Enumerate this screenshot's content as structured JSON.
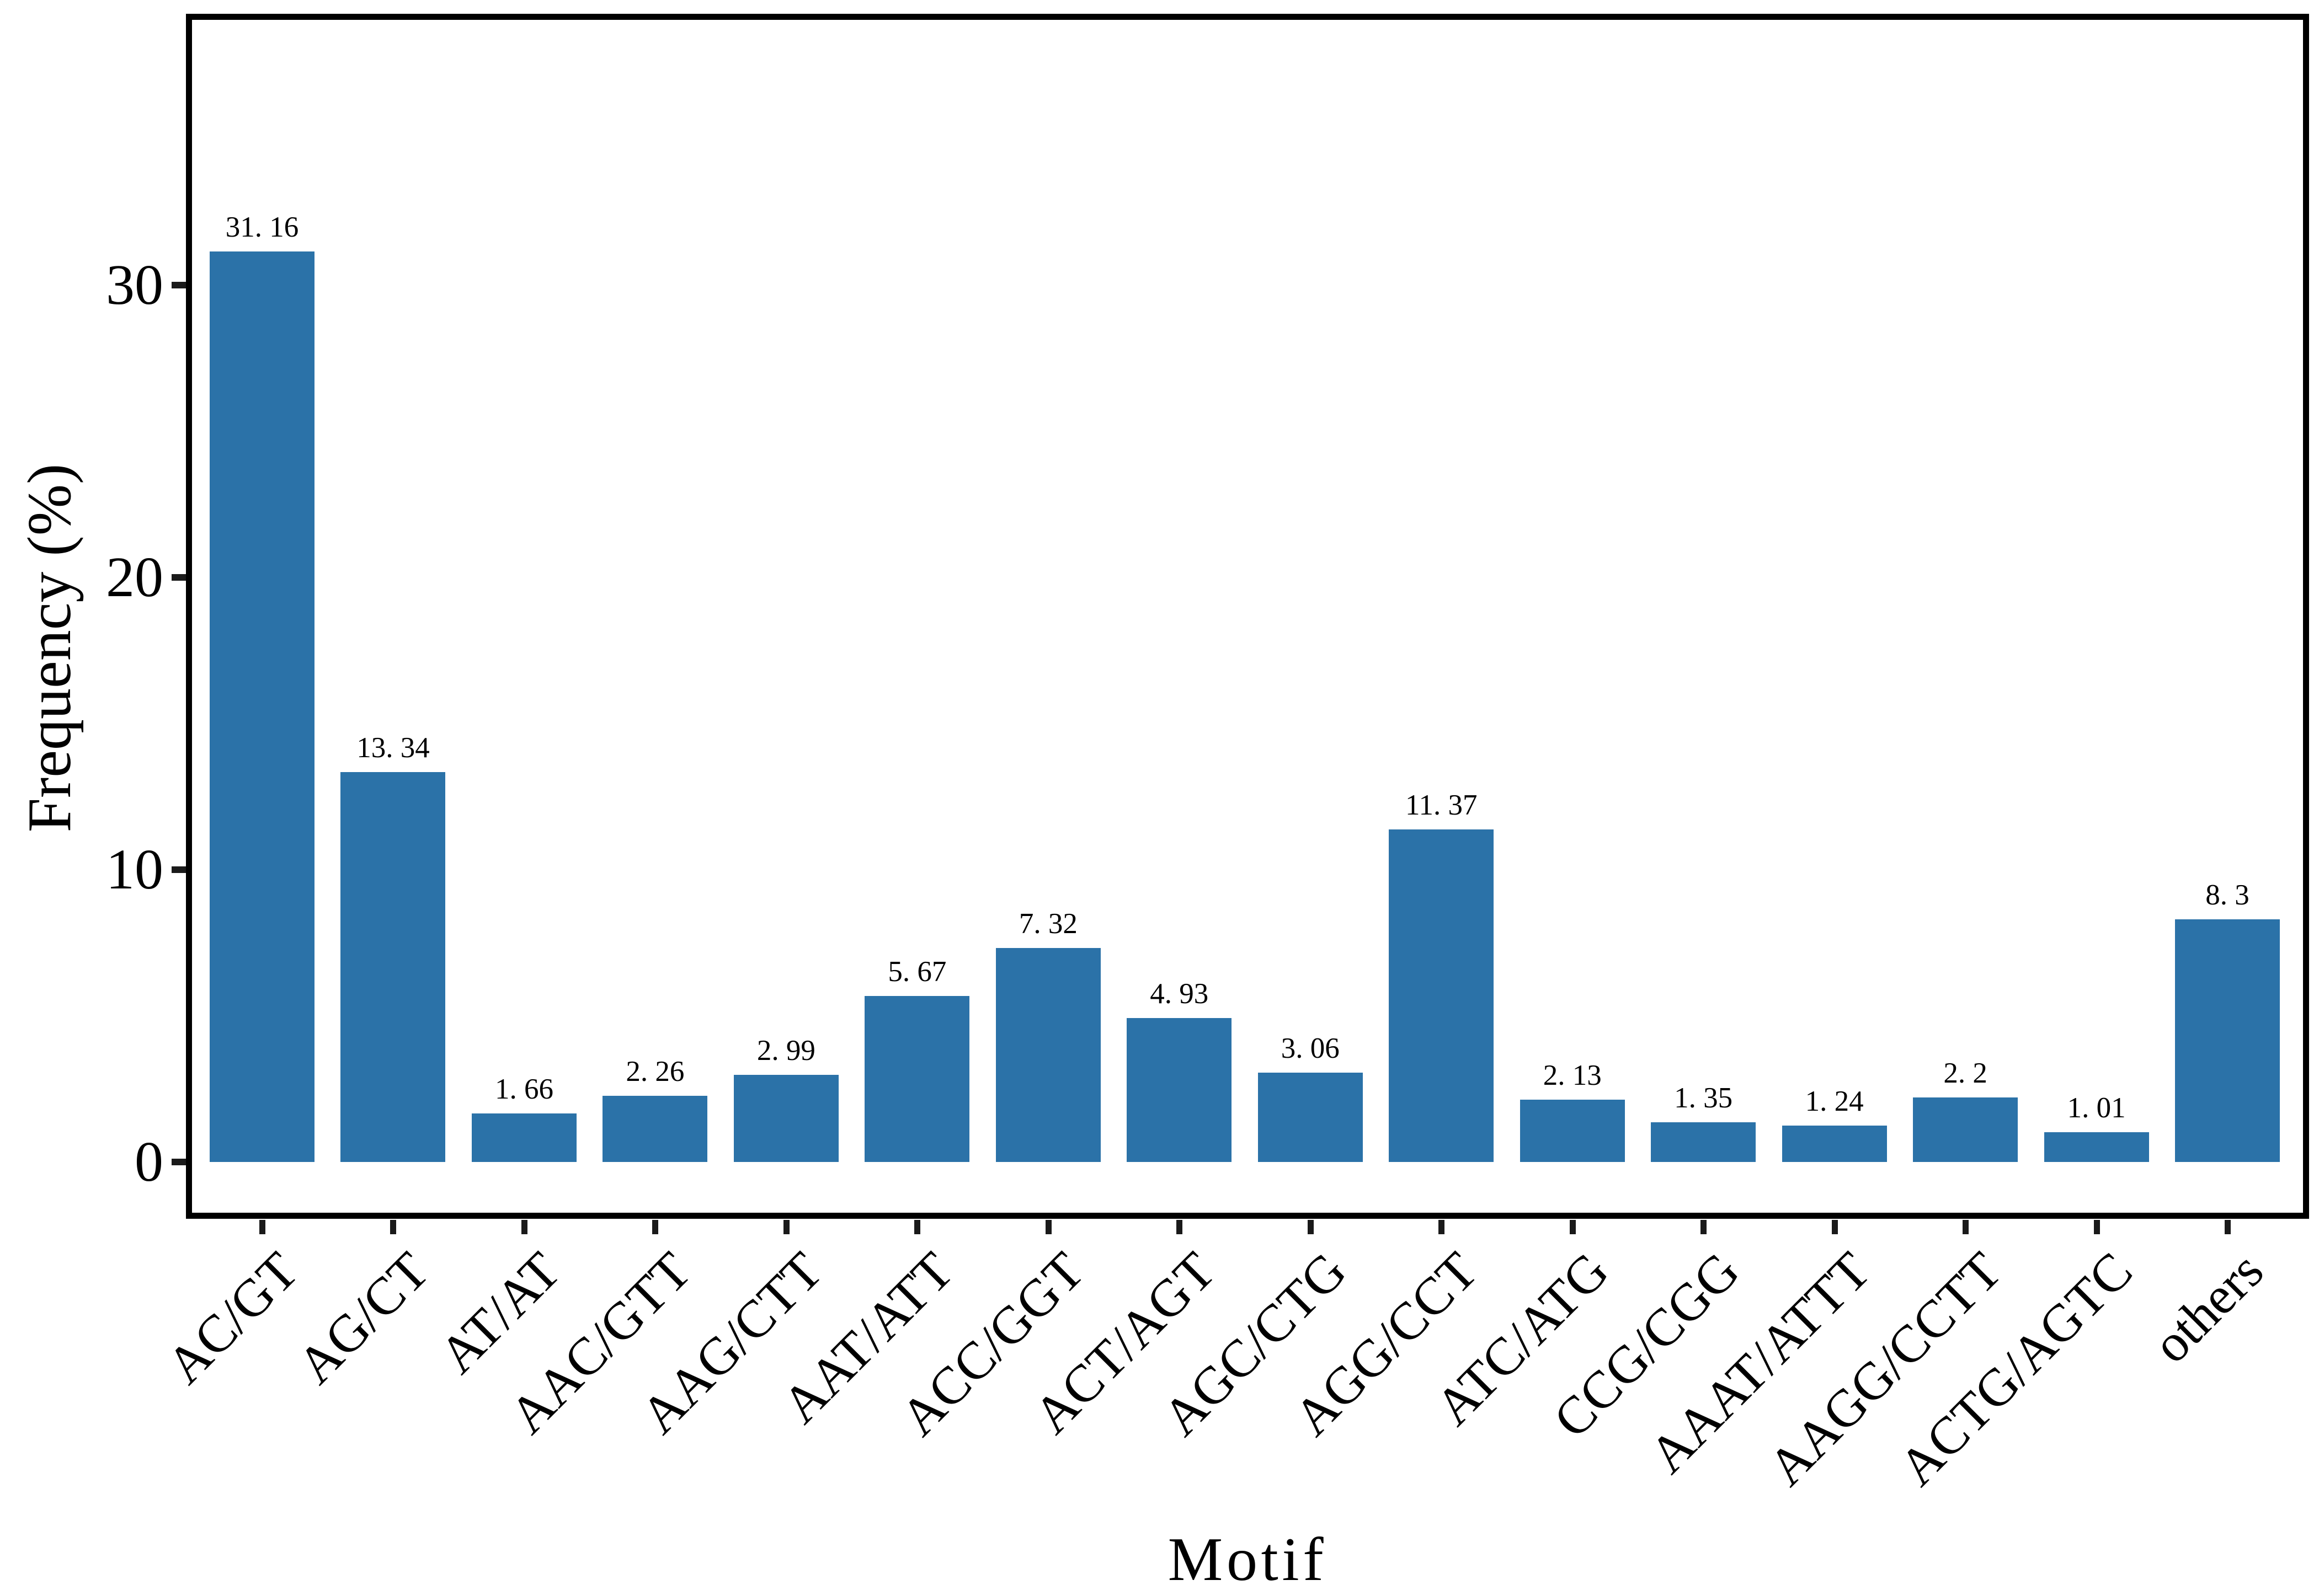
{
  "chart_data": {
    "type": "bar",
    "title": "",
    "xlabel": "Motif",
    "ylabel": "Frequency (%)",
    "categories": [
      "AC/GT",
      "AG/CT",
      "AT/AT",
      "AAC/GTT",
      "AAG/CTT",
      "AAT/ATT",
      "ACC/GGT",
      "ACT/AGT",
      "AGC/CTG",
      "AGG/CCT",
      "ATC/ATG",
      "CCG/CGG",
      "AAAT/ATTT",
      "AAGG/CCTT",
      "ACTG/AGTC",
      "others"
    ],
    "values": [
      31.16,
      13.34,
      1.66,
      2.26,
      2.99,
      5.67,
      7.32,
      4.93,
      3.06,
      11.37,
      2.13,
      1.35,
      1.24,
      2.2,
      1.01,
      8.3
    ],
    "value_labels": [
      "31. 16",
      "13. 34",
      "1. 66",
      "2. 26",
      "2. 99",
      "5. 67",
      "7. 32",
      "4. 93",
      "3. 06",
      "11. 37",
      "2. 13",
      "1. 35",
      "1. 24",
      "2. 2",
      "1. 01",
      "8. 3"
    ],
    "yticks": [
      0,
      10,
      20,
      30
    ],
    "ylim": [
      -1.85,
      39.2
    ],
    "grid": false,
    "legend": "none",
    "bar_color": "#2b72a8",
    "axis_color": "#000000",
    "tick_color": "#1a1a1a",
    "text_color": "#000000",
    "background_color": "#ffffff"
  }
}
